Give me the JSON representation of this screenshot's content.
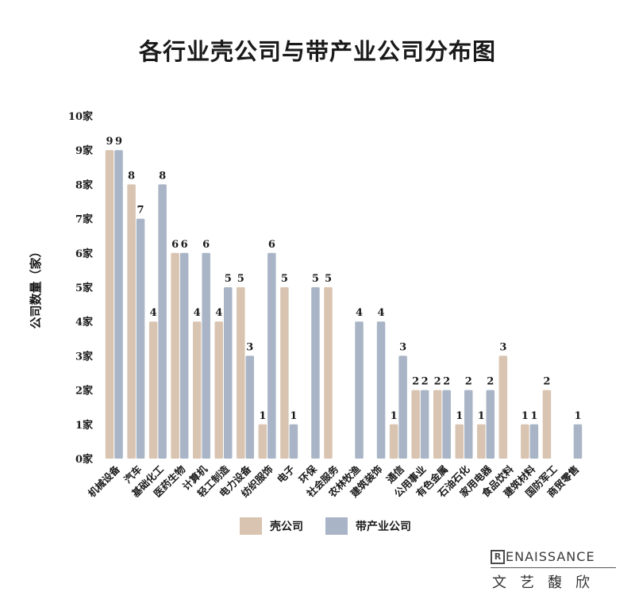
{
  "title": "各行业壳公司与带产业公司分布图",
  "colors": {
    "shell": "#d9c4b2",
    "industry": "#a9b5c6",
    "axis_text": "#1a1a1a",
    "grid": "#cfcfcf"
  },
  "legend": {
    "shell_label": "壳公司",
    "industry_label": "带产业公司"
  },
  "brand": {
    "mark": "R",
    "word": "ENAISSANCE",
    "chinese": "文艺馥欣"
  },
  "chart_data": {
    "type": "bar",
    "title": "各行业壳公司与带产业公司分布图",
    "ylabel": "公司数量（家）",
    "xlabel": "",
    "ylim": [
      0,
      10
    ],
    "yticks": [
      "0家",
      "1家",
      "2家",
      "3家",
      "4家",
      "5家",
      "6家",
      "7家",
      "8家",
      "9家",
      "10家"
    ],
    "grid": false,
    "legend_position": "bottom",
    "categories": [
      "机械设备",
      "汽车",
      "基础化工",
      "医药生物",
      "计算机",
      "轻工制造",
      "电力设备",
      "纺织服饰",
      "电子",
      "环保",
      "社会服务",
      "农林牧渔",
      "建筑装饰",
      "通信",
      "公用事业",
      "有色金属",
      "石油石化",
      "家用电器",
      "食品饮料",
      "建筑材料",
      "国防军工",
      "商贸零售"
    ],
    "series": [
      {
        "name": "壳公司",
        "values": [
          9,
          8,
          4,
          6,
          4,
          4,
          5,
          1,
          5,
          0,
          5,
          0,
          0,
          1,
          2,
          2,
          1,
          1,
          3,
          1,
          2,
          0
        ]
      },
      {
        "name": "带产业公司",
        "values": [
          9,
          7,
          8,
          6,
          6,
          5,
          3,
          6,
          1,
          5,
          0,
          4,
          4,
          3,
          2,
          2,
          2,
          2,
          0,
          1,
          0,
          1
        ]
      }
    ]
  }
}
